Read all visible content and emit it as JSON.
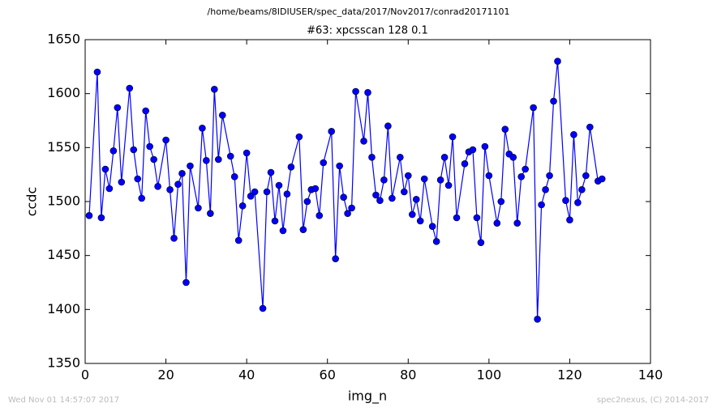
{
  "header": "/home/beams/8IDIUSER/spec_data/2017/Nov2017/conrad20171101",
  "footer_left": "Wed Nov 01 14:57:07 2017",
  "footer_right": "spec2nexus, (C) 2014-2017",
  "chart_data": {
    "type": "line",
    "title": "#63: xpcsscan 128 0.1",
    "x_label": "img_n",
    "y_label": "ccdc",
    "x": [
      1,
      3,
      4,
      5,
      6,
      7,
      8,
      9,
      11,
      12,
      13,
      14,
      15,
      16,
      17,
      18,
      20,
      21,
      22,
      23,
      24,
      25,
      26,
      28,
      29,
      30,
      31,
      32,
      33,
      34,
      36,
      37,
      38,
      39,
      40,
      41,
      42,
      44,
      45,
      46,
      47,
      48,
      49,
      50,
      51,
      53,
      54,
      55,
      56,
      57,
      58,
      59,
      61,
      62,
      63,
      64,
      65,
      66,
      67,
      69,
      70,
      71,
      72,
      73,
      74,
      75,
      76,
      78,
      79,
      80,
      81,
      82,
      83,
      84,
      86,
      87,
      88,
      89,
      90,
      91,
      92,
      94,
      95,
      96,
      97,
      98,
      99,
      100,
      102,
      103,
      104,
      105,
      106,
      107,
      108,
      109,
      111,
      112,
      113,
      114,
      115,
      116,
      117,
      119,
      120,
      121,
      122,
      123,
      124,
      125,
      127,
      128
    ],
    "series": [
      {
        "name": "ccdc",
        "color": "#0000ff",
        "values": [
          1487,
          1620,
          1485,
          1530,
          1512,
          1547,
          1587,
          1518,
          1605,
          1548,
          1521,
          1503,
          1584,
          1551,
          1539,
          1514,
          1557,
          1511,
          1466,
          1516,
          1526,
          1425,
          1533,
          1494,
          1568,
          1538,
          1489,
          1604,
          1539,
          1580,
          1542,
          1523,
          1464,
          1496,
          1545,
          1505,
          1509,
          1401,
          1509,
          1527,
          1482,
          1515,
          1473,
          1507,
          1532,
          1560,
          1474,
          1500,
          1511,
          1512,
          1487,
          1536,
          1565,
          1447,
          1533,
          1504,
          1489,
          1494,
          1602,
          1556,
          1601,
          1541,
          1506,
          1501,
          1520,
          1570,
          1503,
          1541,
          1509,
          1524,
          1488,
          1502,
          1482,
          1521,
          1477,
          1463,
          1520,
          1541,
          1515,
          1560,
          1485,
          1535,
          1546,
          1548,
          1485,
          1462,
          1551,
          1524,
          1480,
          1500,
          1567,
          1544,
          1541,
          1480,
          1523,
          1530,
          1587,
          1391,
          1497,
          1511,
          1524,
          1593,
          1630,
          1501,
          1483,
          1562,
          1499,
          1511,
          1524,
          1569,
          1519,
          1521
        ]
      }
    ],
    "xlim": [
      0,
      140
    ],
    "xticks": [
      0,
      20,
      40,
      60,
      80,
      100,
      120,
      140
    ],
    "ylim": [
      1350,
      1650
    ],
    "yticks": [
      1350,
      1400,
      1450,
      1500,
      1550,
      1600,
      1650
    ]
  }
}
